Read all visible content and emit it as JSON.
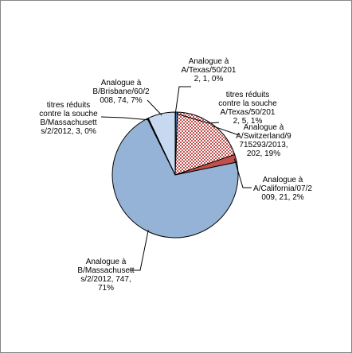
{
  "chart_data": {
    "type": "pie",
    "title": "",
    "slices": [
      {
        "label": [
          "Analogue à",
          "A/Texas/50/201",
          "2, 1, 0%"
        ],
        "value": 1,
        "percent": 0,
        "color": "#4F81BD",
        "fill": "solid"
      },
      {
        "label": [
          "titres réduits",
          "contre la souche",
          "A/Texas/50/201",
          "2, 5, 1%"
        ],
        "value": 5,
        "percent": 1,
        "color": "#4F81BD",
        "fill": "solid"
      },
      {
        "label": [
          "Analogue à",
          "A/Switzerland/9",
          "715293/2013,",
          "202, 19%"
        ],
        "value": 202,
        "percent": 19,
        "color": "#C0504D",
        "fill": "checker"
      },
      {
        "label": [
          "Analogue à",
          "A/California/07/2",
          "009, 21, 2%"
        ],
        "value": 21,
        "percent": 2,
        "color": "#C0504D",
        "fill": "solid"
      },
      {
        "label": [
          "Analogue à",
          "B/Massachusett",
          "s/2/2012, 747,",
          "71%"
        ],
        "value": 747,
        "percent": 71,
        "color": "#95B3D7",
        "fill": "solid"
      },
      {
        "label": [
          "titres réduits",
          "contre la souche",
          "B/Massachusett",
          "s/2/2012, 3, 0%"
        ],
        "value": 3,
        "percent": 0,
        "color": "#1F1F1F",
        "fill": "solid"
      },
      {
        "label": [
          "Analogue à",
          "B/Brisbane/60/2",
          "008, 74, 7%"
        ],
        "value": 74,
        "percent": 7,
        "color": "#C6D9F1",
        "fill": "solid"
      }
    ]
  }
}
